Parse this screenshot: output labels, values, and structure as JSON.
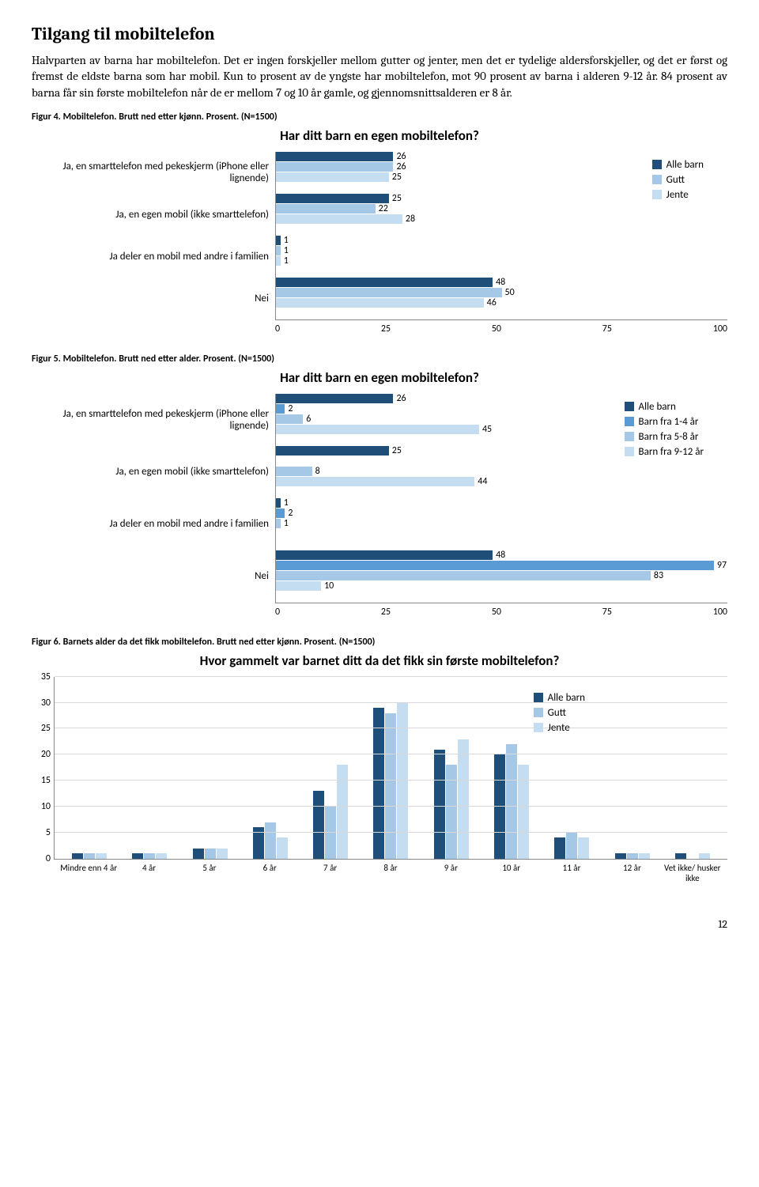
{
  "heading": "Tilgang til mobiltelefon",
  "paragraph": "Halvparten av barna har mobiltelefon. Det er ingen forskjeller mellom gutter og jenter, men det er tydelige aldersforskjeller, og det er først og fremst de eldste barna som har mobil. Kun to prosent av de yngste har mobiltelefon, mot 90 prosent av barna i alderen 9-12 år. 84 prosent av barna får sin første mobiltelefon når de er mellom 7 og 10 år gamle, og gjennomsnittsalderen er 8 år.",
  "captions": {
    "fig4": "Figur 4. Mobiltelefon. Brutt ned etter kjønn. Prosent. (N=1500)",
    "fig5": "Figur 5. Mobiltelefon. Brutt ned etter alder. Prosent. (N=1500)",
    "fig6": "Figur 6. Barnets alder da det fikk mobiltelefon. Brutt ned etter kjønn. Prosent. (N=1500)"
  },
  "colors": {
    "c1": "#1f4e79",
    "c2": "#5b9bd5",
    "c3": "#a5c8e7",
    "c4": "#c5ddf0",
    "grid": "#d9d9d9"
  },
  "chart4": {
    "title": "Har ditt barn en egen mobiltelefon?",
    "categories": [
      "Ja, en smarttelefon med pekeskjerm (iPhone eller lignende)",
      "Ja, en egen mobil (ikke smarttelefon)",
      "Ja deler en mobil med andre i familien",
      "Nei"
    ],
    "series": [
      {
        "name": "Alle barn",
        "colorKey": "c1",
        "values": [
          26,
          25,
          1,
          48
        ]
      },
      {
        "name": "Gutt",
        "colorKey": "c3",
        "values": [
          26,
          22,
          1,
          50
        ]
      },
      {
        "name": "Jente",
        "colorKey": "c4",
        "values": [
          25,
          28,
          1,
          46
        ]
      }
    ],
    "xmax": 100,
    "xticks": [
      0,
      25,
      50,
      75,
      100
    ]
  },
  "chart5": {
    "title": "Har ditt barn en egen mobiltelefon?",
    "categories": [
      "Ja, en smarttelefon med pekeskjerm (iPhone eller lignende)",
      "Ja, en egen mobil (ikke smarttelefon)",
      "Ja deler en mobil med andre i familien",
      "Nei"
    ],
    "series": [
      {
        "name": "Alle barn",
        "colorKey": "c1",
        "values": [
          26,
          25,
          1,
          48
        ]
      },
      {
        "name": "Barn fra 1-4 år",
        "colorKey": "c2",
        "values": [
          2,
          null,
          2,
          97
        ]
      },
      {
        "name": "Barn fra 5-8 år",
        "colorKey": "c3",
        "values": [
          6,
          8,
          1,
          83
        ]
      },
      {
        "name": "Barn fra 9-12 år",
        "colorKey": "c4",
        "values": [
          45,
          44,
          null,
          10
        ]
      }
    ],
    "xmax": 100,
    "xticks": [
      0,
      25,
      50,
      75,
      100
    ]
  },
  "chart6": {
    "title": "Hvor gammelt var barnet ditt da det fikk sin første mobiltelefon?",
    "xlabels": [
      "Mindre enn 4 år",
      "4 år",
      "5 år",
      "6 år",
      "7 år",
      "8 år",
      "9 år",
      "10 år",
      "11 år",
      "12 år",
      "Vet ikke/ husker ikke"
    ],
    "series": [
      {
        "name": "Alle barn",
        "colorKey": "c1",
        "values": [
          1,
          1,
          2,
          6,
          13,
          29,
          21,
          20,
          4,
          1,
          1
        ]
      },
      {
        "name": "Gutt",
        "colorKey": "c3",
        "values": [
          1,
          1,
          2,
          7,
          10,
          28,
          18,
          22,
          5,
          1,
          0
        ]
      },
      {
        "name": "Jente",
        "colorKey": "c4",
        "values": [
          1,
          1,
          2,
          4,
          18,
          30,
          23,
          18,
          4,
          1,
          1
        ]
      }
    ],
    "ymax": 35,
    "yticks": [
      0,
      5,
      10,
      15,
      20,
      25,
      30,
      35
    ]
  },
  "pageNumber": "12"
}
